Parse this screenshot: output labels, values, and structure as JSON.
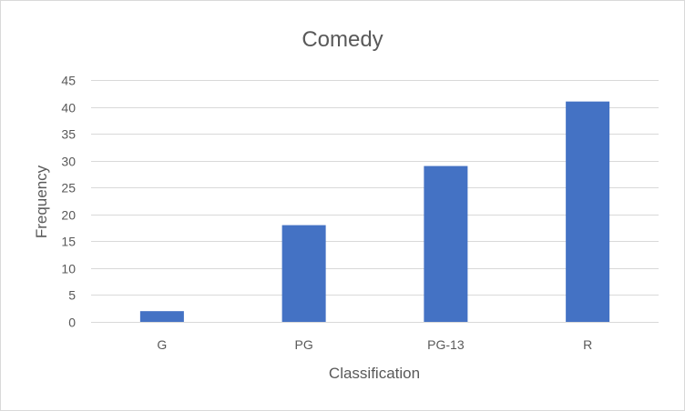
{
  "chart_data": {
    "type": "bar",
    "title": "Comedy",
    "xlabel": "Classification",
    "ylabel": "Frequency",
    "categories": [
      "G",
      "PG",
      "PG-13",
      "R"
    ],
    "values": [
      2,
      18,
      29,
      41
    ],
    "ylim": [
      0,
      45
    ],
    "yticks": [
      0,
      5,
      10,
      15,
      20,
      25,
      30,
      35,
      40,
      45
    ],
    "grid": true,
    "legend": "none",
    "bar_color": "#4472c4"
  }
}
